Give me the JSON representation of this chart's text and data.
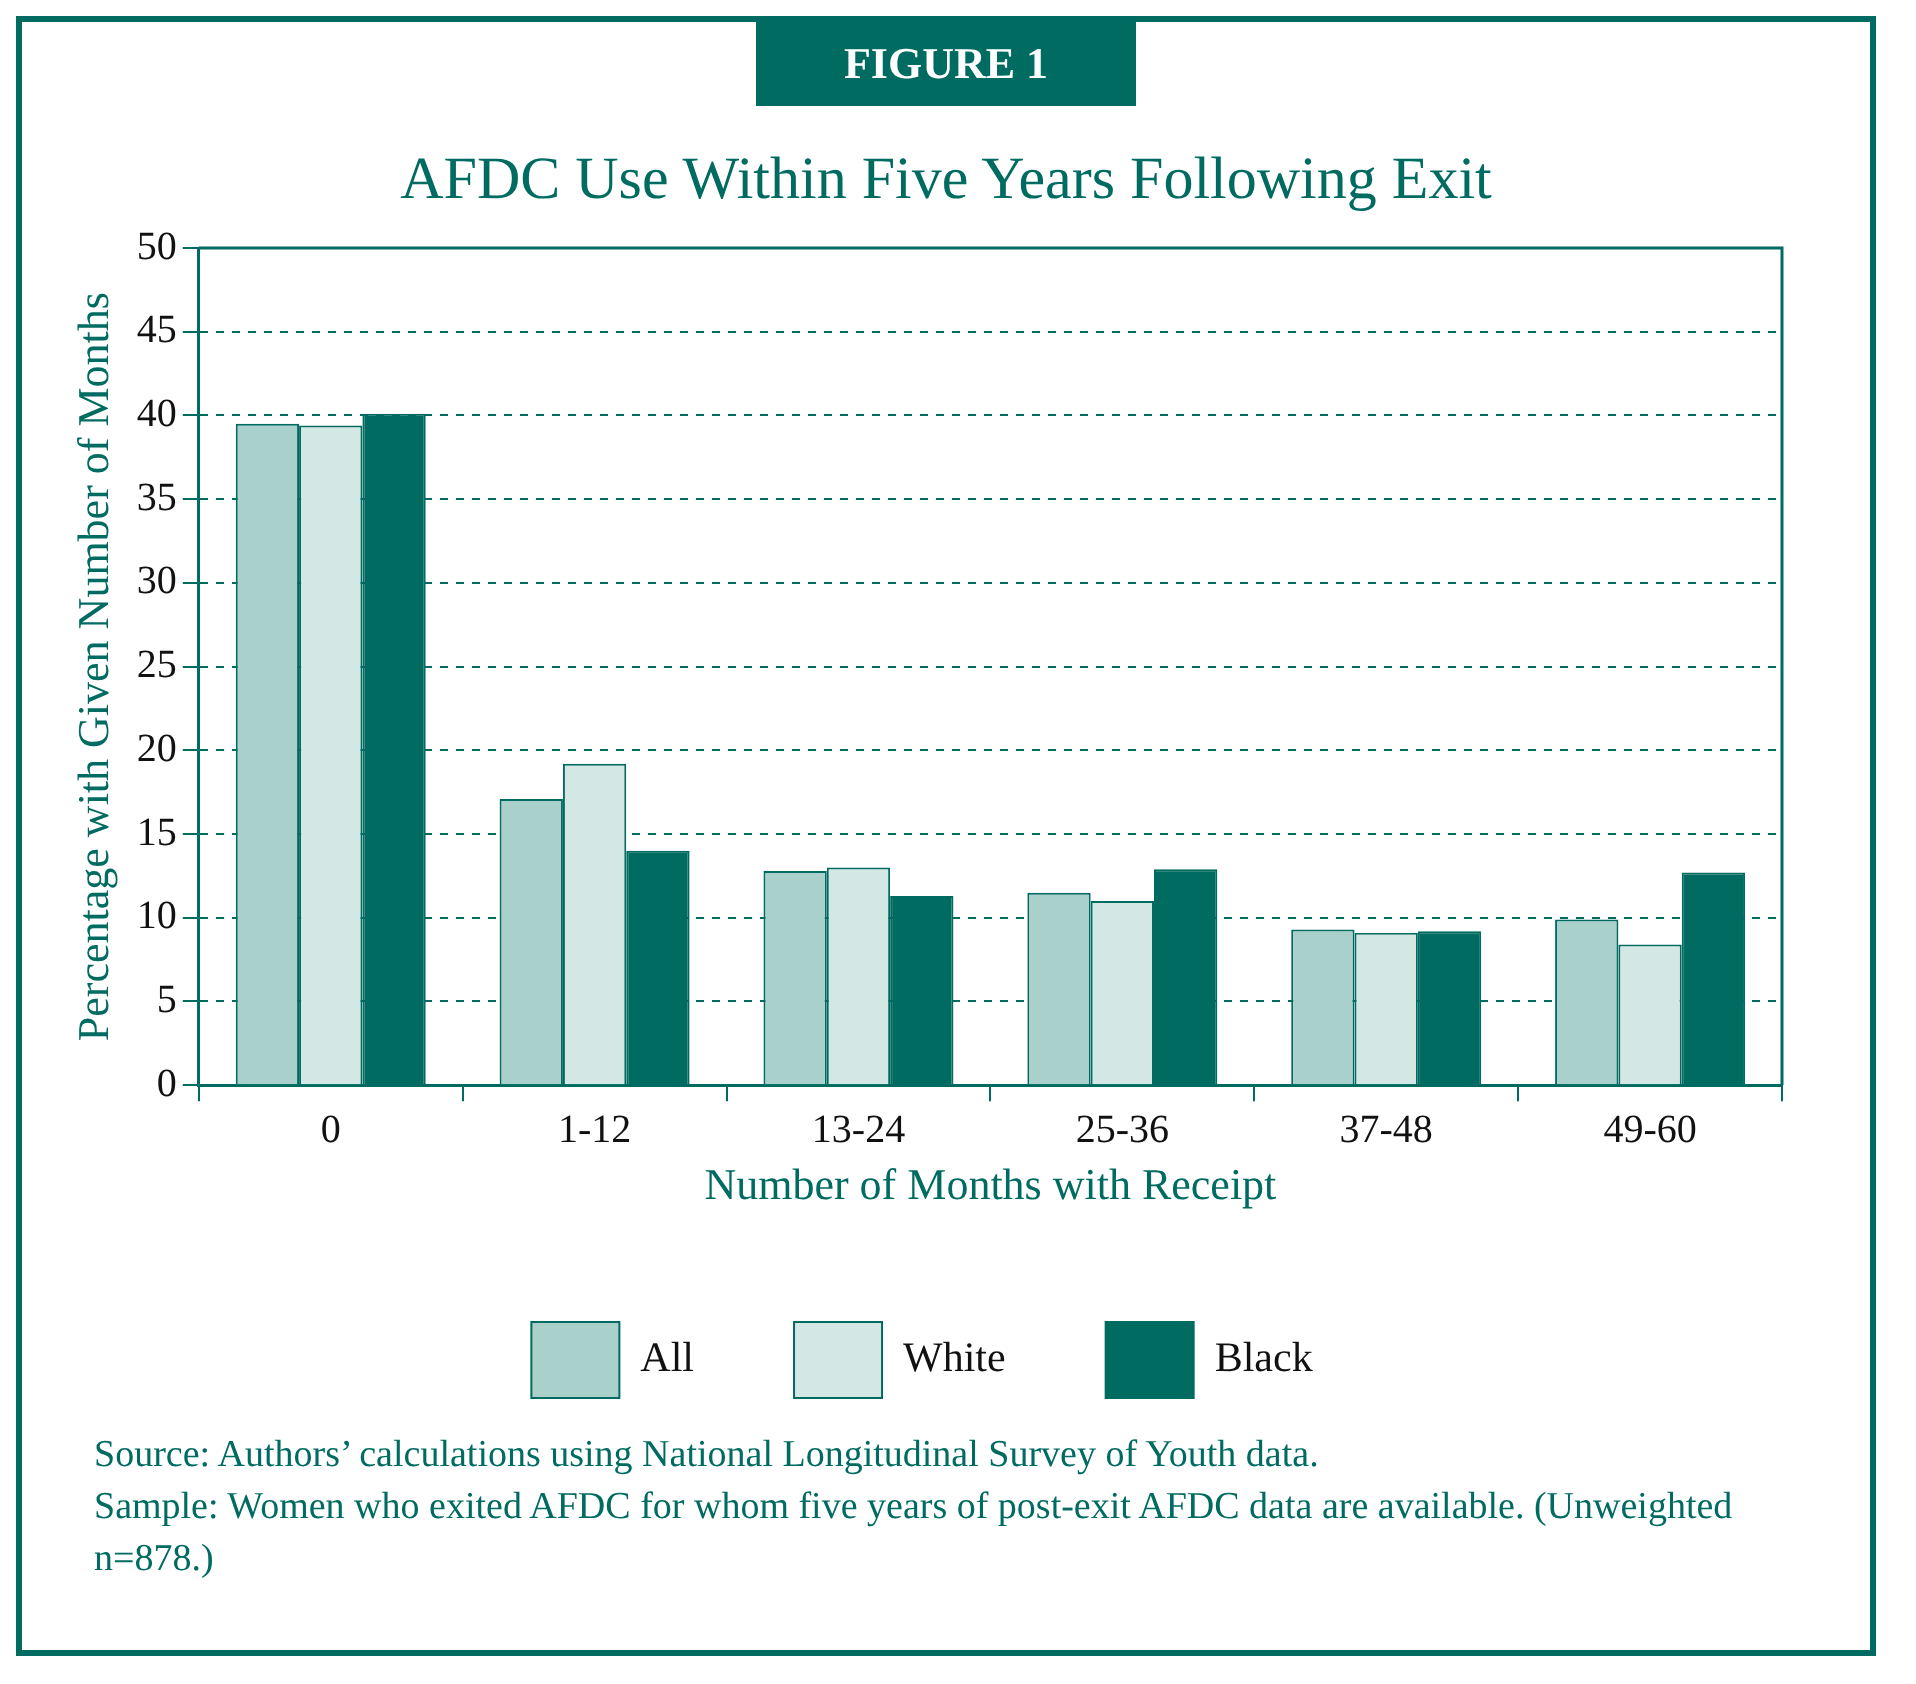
{
  "chart_data": {
    "type": "bar",
    "subtitle": "FIGURE 1",
    "title": "AFDC Use Within Five Years Following Exit",
    "xlabel": "Number of Months with Receipt",
    "ylabel": "Percentage with Given Number of Months",
    "categories": [
      "0",
      "1-12",
      "13-24",
      "25-36",
      "37-48",
      "49-60"
    ],
    "series": [
      {
        "name": "All",
        "color": "#a9d0ca",
        "values": [
          39.5,
          17.1,
          12.8,
          11.5,
          9.3,
          9.9
        ]
      },
      {
        "name": "White",
        "color": "#d3e8e4",
        "values": [
          39.4,
          19.2,
          13.0,
          11.0,
          9.1,
          8.4
        ]
      },
      {
        "name": "Black",
        "color": "#006b61",
        "values": [
          40.1,
          14.0,
          11.3,
          12.9,
          9.2,
          12.7
        ]
      }
    ],
    "ylim": [
      0,
      50
    ],
    "yticks": [
      0,
      5,
      10,
      15,
      20,
      25,
      30,
      35,
      40,
      45,
      50
    ],
    "grid": "y",
    "legend": "bottom",
    "annotations": [
      "Source: Authors’ calculations using National Longitudinal Survey of Youth data.",
      "Sample: Women who exited AFDC for whom five years of post-exit AFDC data are available. (Unweighted n=878.)"
    ]
  }
}
